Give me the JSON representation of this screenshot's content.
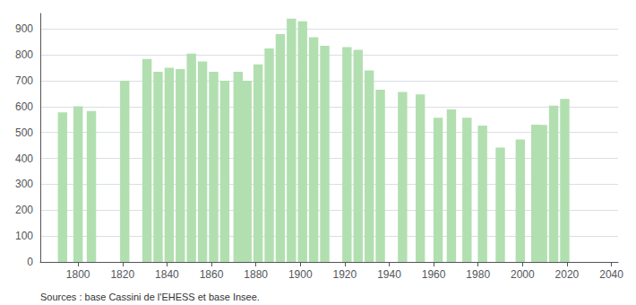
{
  "chart_data": {
    "type": "bar",
    "x": [
      1793,
      1800,
      1806,
      1821,
      1831,
      1836,
      1841,
      1846,
      1851,
      1856,
      1861,
      1866,
      1872,
      1876,
      1881,
      1886,
      1891,
      1896,
      1901,
      1906,
      1911,
      1921,
      1926,
      1931,
      1936,
      1946,
      1954,
      1962,
      1968,
      1975,
      1982,
      1990,
      1999,
      2006,
      2009,
      2014,
      2019
    ],
    "values": [
      578,
      601,
      583,
      700,
      784,
      735,
      750,
      745,
      805,
      775,
      735,
      700,
      735,
      700,
      763,
      825,
      880,
      940,
      930,
      868,
      835,
      830,
      820,
      740,
      665,
      657,
      647,
      557,
      589,
      557,
      527,
      442,
      473,
      530,
      529,
      604,
      630
    ],
    "color": "#b2dfb0",
    "xlim": [
      1783,
      2043
    ],
    "xticks": [
      1800,
      1820,
      1840,
      1860,
      1880,
      1900,
      1920,
      1940,
      1960,
      1980,
      2000,
      2020,
      2040
    ],
    "ylim": [
      0,
      960
    ],
    "yticks": [
      0,
      100,
      200,
      300,
      400,
      500,
      600,
      700,
      800,
      900
    ],
    "grid": true,
    "annotations": [
      "Sources : base Cassini de l'EHESS et base Insee."
    ]
  }
}
